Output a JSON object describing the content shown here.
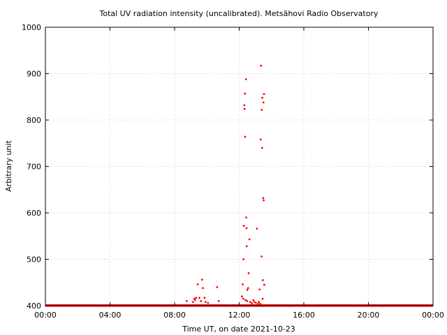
{
  "chart_data": {
    "type": "scatter",
    "title": "Total UV radiation intensity (uncalibrated). Metsähovi Radio Observatory",
    "xlabel": "Time UT, on date 2021-10-23",
    "ylabel": "Arbitrary unit",
    "xlim": [
      "00:00",
      "24:00"
    ],
    "ylim": [
      400,
      1000
    ],
    "x_ticks": [
      "00:00",
      "04:00",
      "08:00",
      "12:00",
      "16:00",
      "20:00",
      "00:00"
    ],
    "y_ticks": [
      "400",
      "500",
      "600",
      "700",
      "800",
      "900",
      "1000"
    ],
    "grid": true,
    "baseline": {
      "value": 400,
      "from": "00:00",
      "to": "24:00"
    },
    "series": [
      {
        "color": "#ff0000",
        "marker": "dot",
        "points": [
          {
            "x": "08:45",
            "y": 410
          },
          {
            "x": "09:08",
            "y": 408
          },
          {
            "x": "09:13",
            "y": 415
          },
          {
            "x": "09:16",
            "y": 412
          },
          {
            "x": "09:20",
            "y": 417
          },
          {
            "x": "09:26",
            "y": 446
          },
          {
            "x": "09:32",
            "y": 417
          },
          {
            "x": "09:38",
            "y": 410
          },
          {
            "x": "09:42",
            "y": 456
          },
          {
            "x": "09:45",
            "y": 438
          },
          {
            "x": "09:51",
            "y": 417
          },
          {
            "x": "09:55",
            "y": 408
          },
          {
            "x": "10:04",
            "y": 406
          },
          {
            "x": "10:38",
            "y": 440
          },
          {
            "x": "10:44",
            "y": 410
          },
          {
            "x": "12:10",
            "y": 420
          },
          {
            "x": "12:13",
            "y": 446
          },
          {
            "x": "12:15",
            "y": 415
          },
          {
            "x": "12:16",
            "y": 500
          },
          {
            "x": "12:17",
            "y": 572
          },
          {
            "x": "12:19",
            "y": 832
          },
          {
            "x": "12:20",
            "y": 824
          },
          {
            "x": "12:21",
            "y": 857
          },
          {
            "x": "12:22",
            "y": 764
          },
          {
            "x": "12:23",
            "y": 412
          },
          {
            "x": "12:25",
            "y": 888
          },
          {
            "x": "12:26",
            "y": 590
          },
          {
            "x": "12:27",
            "y": 567
          },
          {
            "x": "12:28",
            "y": 528
          },
          {
            "x": "12:29",
            "y": 410
          },
          {
            "x": "12:30",
            "y": 434
          },
          {
            "x": "12:33",
            "y": 438
          },
          {
            "x": "12:35",
            "y": 470
          },
          {
            "x": "12:38",
            "y": 543
          },
          {
            "x": "12:41",
            "y": 408
          },
          {
            "x": "12:47",
            "y": 405
          },
          {
            "x": "12:52",
            "y": 412
          },
          {
            "x": "12:56",
            "y": 408
          },
          {
            "x": "13:02",
            "y": 406
          },
          {
            "x": "13:06",
            "y": 566
          },
          {
            "x": "13:10",
            "y": 404
          },
          {
            "x": "13:13",
            "y": 408
          },
          {
            "x": "13:16",
            "y": 435
          },
          {
            "x": "13:18",
            "y": 404
          },
          {
            "x": "13:20",
            "y": 758
          },
          {
            "x": "13:21",
            "y": 917
          },
          {
            "x": "13:23",
            "y": 506
          },
          {
            "x": "13:24",
            "y": 822
          },
          {
            "x": "13:25",
            "y": 740
          },
          {
            "x": "13:26",
            "y": 848
          },
          {
            "x": "13:27",
            "y": 415
          },
          {
            "x": "13:28",
            "y": 455
          },
          {
            "x": "13:29",
            "y": 632
          },
          {
            "x": "13:30",
            "y": 838
          },
          {
            "x": "13:31",
            "y": 627
          },
          {
            "x": "13:32",
            "y": 856
          },
          {
            "x": "13:33",
            "y": 445
          }
        ]
      }
    ]
  }
}
